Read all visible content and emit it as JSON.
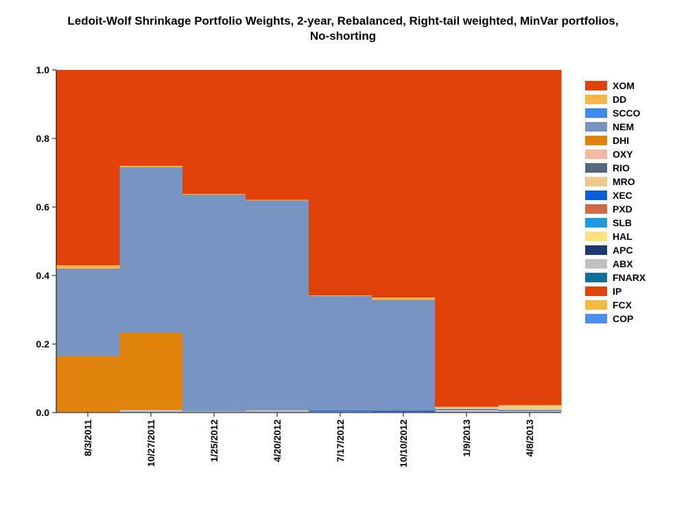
{
  "chart_data": {
    "type": "area",
    "step": true,
    "title_lines": [
      "Ledoit-Wolf Shrinkage Portfolio Weights, 2-year, Rebalanced, Right-tail weighted, MinVar portfolios,",
      "No-shorting"
    ],
    "xlabel": "",
    "ylabel": "",
    "ylim": [
      0,
      1
    ],
    "yticks": [
      "0.0",
      "0.2",
      "0.4",
      "0.6",
      "0.8",
      "1.0"
    ],
    "ytick_values": [
      0,
      0.2,
      0.4,
      0.6,
      0.8,
      1.0
    ],
    "categories": [
      "8/3/2011",
      "10/27/2011",
      "1/25/2012",
      "4/20/2012",
      "7/17/2012",
      "10/10/2012",
      "1/9/2013",
      "4/8/2013"
    ],
    "grid": false,
    "legend_position": "right",
    "series": [
      {
        "name": "COP",
        "color": "#4a90e8",
        "values": [
          0,
          0,
          0,
          0,
          0,
          0,
          0,
          0
        ]
      },
      {
        "name": "FCX",
        "color": "#f5b942",
        "values": [
          0,
          0,
          0,
          0,
          0,
          0,
          0,
          0
        ]
      },
      {
        "name": "IP",
        "color": "#e0420a",
        "values": [
          0,
          0,
          0,
          0,
          0,
          0,
          0,
          0
        ]
      },
      {
        "name": "FNARX",
        "color": "#0e6e9c",
        "values": [
          0,
          0,
          0,
          0,
          0,
          0,
          0,
          0
        ]
      },
      {
        "name": "ABX",
        "color": "#c0c0c0",
        "values": [
          0.002,
          0.008,
          0.004,
          0.007,
          0.003,
          0.002,
          0.008,
          0.005
        ]
      },
      {
        "name": "APC",
        "color": "#1d3a70",
        "values": [
          0,
          0,
          0,
          0,
          0,
          0,
          0,
          0
        ]
      },
      {
        "name": "HAL",
        "color": "#fde080",
        "values": [
          0,
          0,
          0,
          0,
          0,
          0,
          0,
          0
        ]
      },
      {
        "name": "SLB",
        "color": "#1e9be0",
        "values": [
          0,
          0,
          0,
          0,
          0,
          0,
          0,
          0
        ]
      },
      {
        "name": "PXD",
        "color": "#d0684a",
        "values": [
          0,
          0,
          0,
          0,
          0,
          0,
          0,
          0
        ]
      },
      {
        "name": "XEC",
        "color": "#0a5fd8",
        "values": [
          0,
          0,
          0,
          0,
          0.003,
          0.003,
          0.002,
          0.002
        ]
      },
      {
        "name": "MRO",
        "color": "#efc98a",
        "values": [
          0,
          0,
          0,
          0,
          0,
          0,
          0.006,
          0.013
        ]
      },
      {
        "name": "RIO",
        "color": "#54667e",
        "values": [
          0,
          0,
          0,
          0,
          0,
          0,
          0,
          0
        ]
      },
      {
        "name": "OXY",
        "color": "#f2b9a6",
        "values": [
          0,
          0,
          0,
          0,
          0,
          0,
          0,
          0
        ]
      },
      {
        "name": "DHI",
        "color": "#e0820c",
        "values": [
          0.163,
          0.225,
          0,
          0,
          0,
          0,
          0,
          0
        ]
      },
      {
        "name": "NEM",
        "color": "#7794c0",
        "values": [
          0.255,
          0.483,
          0.632,
          0.612,
          0.334,
          0.324,
          0,
          0
        ]
      },
      {
        "name": "SCCO",
        "color": "#3f8ae8",
        "values": [
          0,
          0,
          0,
          0,
          0,
          0,
          0,
          0
        ]
      },
      {
        "name": "DD",
        "color": "#fbb548",
        "values": [
          0.01,
          0.004,
          0.002,
          0.002,
          0.002,
          0.007,
          0.001,
          0.002
        ]
      },
      {
        "name": "XOM",
        "color": "#e0420a",
        "values": [
          0.57,
          0.28,
          0.362,
          0.379,
          0.658,
          0.664,
          0.983,
          0.978
        ]
      }
    ],
    "legend_order": [
      "XOM",
      "DD",
      "SCCO",
      "NEM",
      "DHI",
      "OXY",
      "RIO",
      "MRO",
      "XEC",
      "PXD",
      "SLB",
      "HAL",
      "APC",
      "ABX",
      "FNARX",
      "IP",
      "FCX",
      "COP"
    ]
  }
}
